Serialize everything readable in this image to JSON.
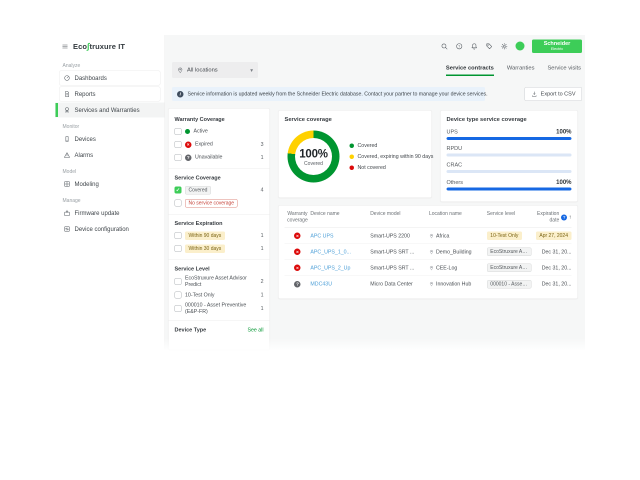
{
  "brand": {
    "name": "EcoStruxure IT",
    "logo_prefix": "Eco",
    "logo_glyph": "∫",
    "logo_suffix": "truxure IT"
  },
  "header": {
    "icons": [
      "search",
      "help",
      "notifications",
      "feedback",
      "settings"
    ],
    "avatar_color": "#3dcd58",
    "logo_line1": "Schneider",
    "logo_line2": "Electric"
  },
  "sidebar": {
    "sections": [
      {
        "label": "Analyze",
        "items": [
          {
            "label": "Dashboards",
            "icon": "dashboard",
            "boxed": true,
            "selected": false
          },
          {
            "label": "Reports",
            "icon": "report",
            "boxed": true,
            "selected": false
          },
          {
            "label": "Services and Warranties",
            "icon": "services",
            "boxed": false,
            "selected": true
          }
        ]
      },
      {
        "label": "Monitor",
        "items": [
          {
            "label": "Devices",
            "icon": "devices",
            "boxed": false,
            "selected": false
          },
          {
            "label": "Alarms",
            "icon": "alarms",
            "boxed": false,
            "selected": false
          }
        ]
      },
      {
        "label": "Model",
        "items": [
          {
            "label": "Modeling",
            "icon": "modeling",
            "boxed": false,
            "selected": false
          }
        ]
      },
      {
        "label": "Manage",
        "items": [
          {
            "label": "Firmware update",
            "icon": "firmware",
            "boxed": false,
            "selected": false
          },
          {
            "label": "Device configuration",
            "icon": "config",
            "boxed": false,
            "selected": false
          }
        ]
      }
    ]
  },
  "toolbar": {
    "location_filter": "All locations",
    "info_glyph": "i",
    "tabs": [
      {
        "label": "Service contracts",
        "active": true
      },
      {
        "label": "Warranties",
        "active": false
      },
      {
        "label": "Service visits",
        "active": false
      }
    ],
    "banner": "Service information is updated weekly from the Schneider Electric database. Contact your partner to manage your device services.",
    "export_label": "Export to CSV"
  },
  "filters": {
    "groups": [
      {
        "title": "Warranty Coverage",
        "options": [
          {
            "kind": "status",
            "status": "active",
            "label": "Active",
            "count": "",
            "checked": false
          },
          {
            "kind": "status",
            "status": "expired",
            "label": "Expired",
            "count": "3",
            "checked": false
          },
          {
            "kind": "status",
            "status": "unavailable",
            "label": "Unavailable",
            "count": "1",
            "checked": false
          }
        ]
      },
      {
        "title": "Service Coverage",
        "options": [
          {
            "kind": "badge",
            "badge": "neutral",
            "label": "Covered",
            "count": "4",
            "checked": true
          },
          {
            "kind": "badge",
            "badge": "error",
            "label": "No service coverage",
            "count": "",
            "checked": false
          }
        ]
      },
      {
        "title": "Service Expiration",
        "options": [
          {
            "kind": "badge",
            "badge": "warning",
            "label": "Within 90 days",
            "count": "1",
            "checked": false
          },
          {
            "kind": "badge",
            "badge": "warning",
            "label": "Within 30 days",
            "count": "1",
            "checked": false
          }
        ]
      },
      {
        "title": "Service Level",
        "options": [
          {
            "kind": "plain",
            "label": "EcoStruxure Asset Advisor Predict",
            "count": "2",
            "checked": false
          },
          {
            "kind": "plain",
            "label": "10-Test Only",
            "count": "1",
            "checked": false
          },
          {
            "kind": "plain",
            "label": "000010 - Asset Preventive (E&P-FR)",
            "count": "1",
            "checked": false
          }
        ]
      },
      {
        "title": "Device Type",
        "see_all": "See all",
        "options": []
      }
    ]
  },
  "chart_data": [
    {
      "type": "pie",
      "subtype": "donut",
      "title": "Service coverage",
      "center_value": "100%",
      "center_label": "Covered",
      "segments": [
        {
          "label": "Covered",
          "value": 77,
          "color": "#009530"
        },
        {
          "label": "Covered, expiring within 90 days",
          "value": 23,
          "color": "#ffd100"
        },
        {
          "label": "Not covered",
          "value": 0,
          "color": "#dc0a0a"
        }
      ],
      "legend_position": "right"
    },
    {
      "type": "bar",
      "orientation": "horizontal",
      "title": "Device type service coverage",
      "categories": [
        "UPS",
        "RPDU",
        "CRAC",
        "Others"
      ],
      "values": [
        100,
        0,
        0,
        100
      ],
      "value_labels": [
        "100%",
        "",
        "",
        "100%"
      ],
      "xlim": [
        0,
        100
      ],
      "color": "#1668e3"
    }
  ],
  "table": {
    "columns": [
      {
        "label": "Warranty coverage",
        "align": "center"
      },
      {
        "label": "Device name",
        "align": "left"
      },
      {
        "label": "Device model",
        "align": "left"
      },
      {
        "label": "Location name",
        "align": "left"
      },
      {
        "label": "Service level",
        "align": "left"
      },
      {
        "label": "Expiration date",
        "align": "right",
        "icons": [
          "info",
          "sort_asc"
        ]
      }
    ],
    "rows": [
      {
        "warranty": "expired",
        "device": "APC UPS",
        "model": "Smart-UPS 2200",
        "location": "Africa",
        "level": {
          "text": "10-Test Only",
          "style": "warning"
        },
        "expiration": {
          "text": "Apr 27, 2024",
          "style": "warning"
        }
      },
      {
        "warranty": "expired",
        "device": "APC_UPS_1_0...",
        "model": "Smart-UPS SRT ...",
        "location": "Demo_Building",
        "level": {
          "text": "EcoStruxure Ass...",
          "style": "neutral"
        },
        "expiration": {
          "text": "Dec 31, 20...",
          "style": "plain"
        }
      },
      {
        "warranty": "expired",
        "device": "APC_UPS_2_Up",
        "model": "Smart-UPS SRT ...",
        "location": "CEE-Log",
        "level": {
          "text": "EcoStruxure Ass...",
          "style": "neutral"
        },
        "expiration": {
          "text": "Dec 31, 20...",
          "style": "plain"
        }
      },
      {
        "warranty": "unavailable",
        "device": "MDC43U",
        "model": "Micro Data Center",
        "location": "Innovation Hub",
        "level": {
          "text": "000010 - Asset ...",
          "style": "neutral"
        },
        "expiration": {
          "text": "Dec 31, 20...",
          "style": "plain"
        }
      }
    ]
  },
  "icon_glyphs": {
    "check": "✓",
    "close": "×",
    "unavailable": "?",
    "chevron_down": "▾",
    "info": "?",
    "sort_asc": "↑"
  },
  "colors": {
    "brand_green": "#3dcd58",
    "dark_green": "#009530",
    "yellow": "#ffd100",
    "red": "#dc0a0a",
    "bar_blue": "#1668e3",
    "link_blue": "#4fa0d8",
    "banner_bg": "#e9f2fb",
    "content_bg": "#f6f7f7"
  }
}
